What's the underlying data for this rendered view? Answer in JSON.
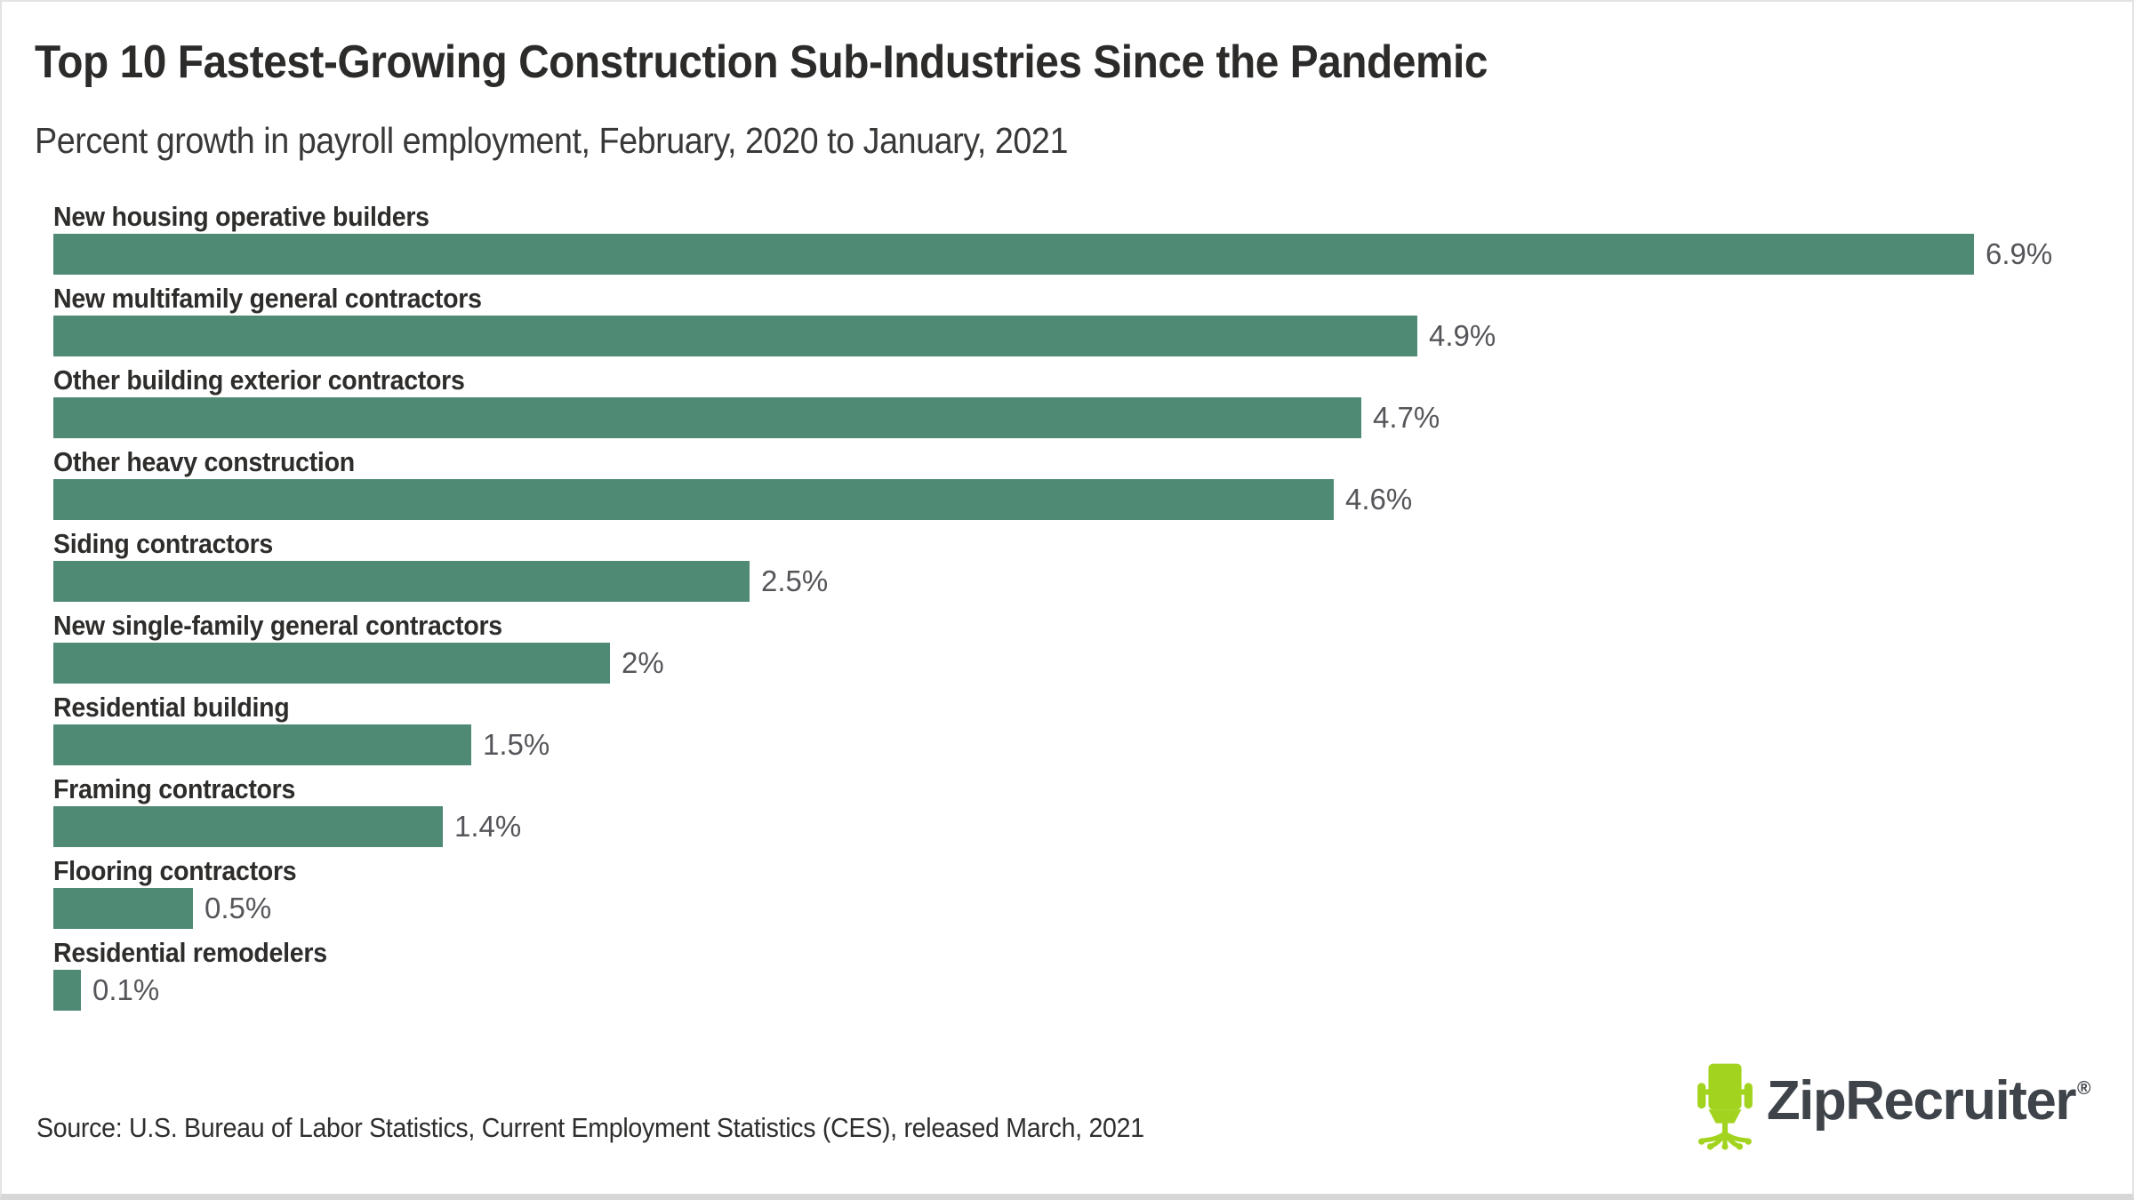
{
  "header": {
    "title": "Top 10 Fastest-Growing Construction Sub-Industries Since the Pandemic",
    "subtitle": "Percent growth in payroll employment, February, 2020 to January, 2021"
  },
  "chart_data": {
    "type": "bar",
    "orientation": "horizontal",
    "title": "Top 10 Fastest-Growing Construction Sub-Industries Since the Pandemic",
    "subtitle": "Percent growth in payroll employment, February, 2020 to January, 2021",
    "categories": [
      "New housing operative builders",
      "New multifamily general contractors",
      "Other building exterior contractors",
      "Other heavy construction",
      "Siding contractors",
      "New single-family general contractors",
      "Residential building",
      "Framing contractors",
      "Flooring contractors",
      "Residential remodelers"
    ],
    "values": [
      6.9,
      4.9,
      4.7,
      4.6,
      2.5,
      2,
      1.5,
      1.4,
      0.5,
      0.1
    ],
    "value_labels": [
      "6.9%",
      "4.9%",
      "4.7%",
      "4.6%",
      "2.5%",
      "2%",
      "1.5%",
      "1.4%",
      "0.5%",
      "0.1%"
    ],
    "xlabel": "",
    "ylabel": "",
    "xlim": [
      0,
      7.2
    ],
    "grid": false,
    "legend": false,
    "bar_color": "#4e8a74"
  },
  "footer": {
    "source": "Source: U.S. Bureau of Labor Statistics, Current Employment Statistics (CES), released March, 2021"
  },
  "branding": {
    "wordmark": "ZipRecruiter",
    "registered_mark": "®",
    "icon": "office-chair-icon",
    "icon_color": "#a2d41f",
    "wordmark_color": "#3f444b"
  },
  "colors": {
    "bar": "#4e8a74",
    "value_text": "#55565a",
    "label_text": "#2e2d2b",
    "background": "#ffffff",
    "border": "#e3e3e3"
  }
}
